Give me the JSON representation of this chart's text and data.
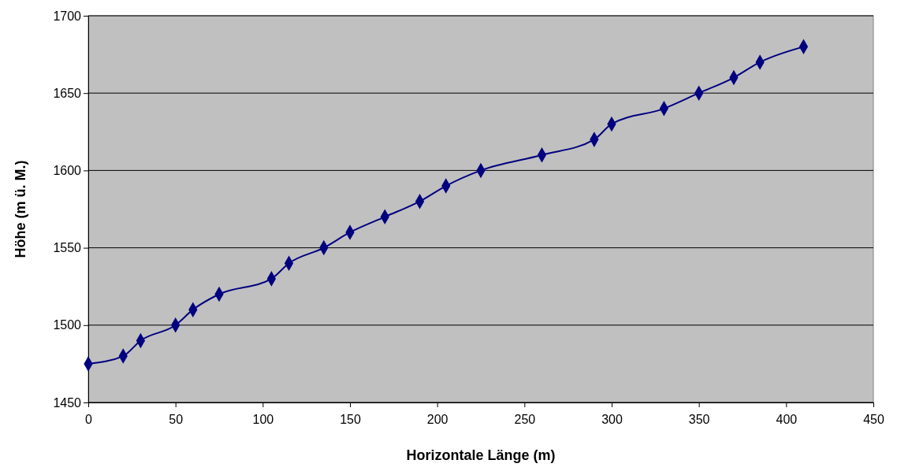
{
  "chart_data": {
    "type": "line",
    "xlabel": "Horizontale Länge (m)",
    "ylabel": "Höhe (m ü. M.)",
    "x": [
      0,
      20,
      30,
      50,
      60,
      75,
      105,
      115,
      135,
      150,
      170,
      190,
      205,
      225,
      260,
      290,
      300,
      330,
      350,
      370,
      385,
      410
    ],
    "series": [
      {
        "color": "#000080",
        "values": [
          1475,
          1480,
          1490,
          1500,
          1510,
          1520,
          1530,
          1540,
          1550,
          1560,
          1570,
          1580,
          1590,
          1600,
          1610,
          1620,
          1630,
          1640,
          1650,
          1660,
          1670,
          1680
        ]
      }
    ],
    "xlim": [
      0,
      450
    ],
    "xticks": [
      0,
      50,
      100,
      150,
      200,
      250,
      300,
      350,
      400,
      450
    ],
    "ylim": [
      1450,
      1700
    ],
    "yticks": [
      1450,
      1500,
      1550,
      1600,
      1650,
      1700
    ],
    "grid": "y",
    "marker": "diamond",
    "line_style": "solid"
  }
}
